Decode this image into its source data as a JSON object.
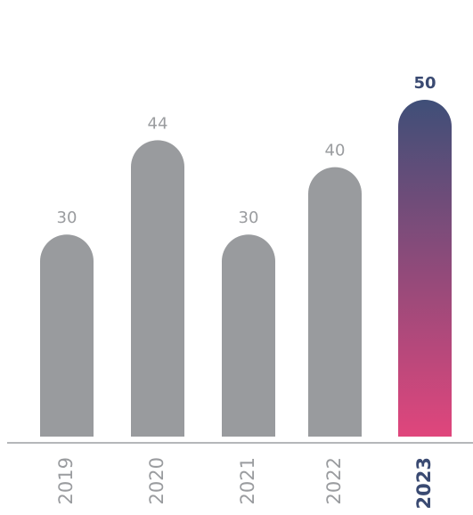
{
  "chart_data": {
    "type": "bar",
    "categories": [
      "2019",
      "2020",
      "2021",
      "2022",
      "2023"
    ],
    "values": [
      30,
      44,
      30,
      40,
      50
    ],
    "color": "#999b9e",
    "highlight": {
      "index": 4,
      "gradient": [
        "#3f4f78",
        "#e0467c"
      ],
      "label_color": "#3a4a72"
    }
  }
}
